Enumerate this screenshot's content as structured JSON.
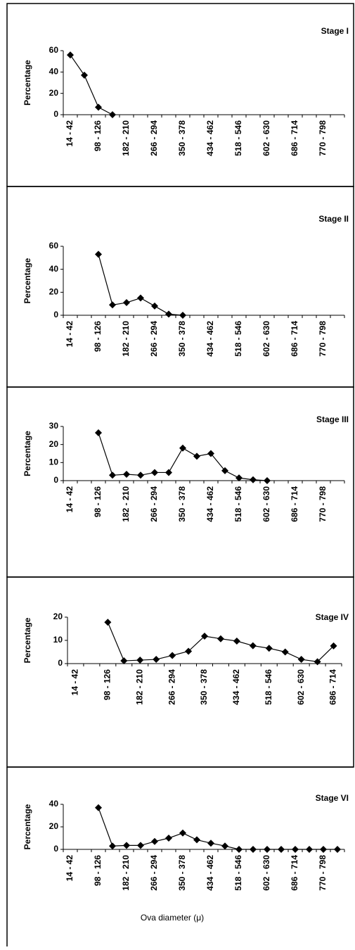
{
  "chart_data": [
    {
      "type": "line",
      "title": "Stage I",
      "ylabel": "Percentage",
      "categories": [
        "14 - 42",
        null,
        "98 - 126",
        null,
        "182 - 210",
        null,
        "266 - 294",
        null,
        "350 - 378",
        null,
        "434 - 462",
        null,
        "518 - 546",
        null,
        "602 - 630",
        null,
        "686 - 714",
        null,
        "770 - 798",
        null
      ],
      "values": [
        56,
        37,
        7,
        0,
        null,
        null,
        null,
        null,
        null,
        null,
        null,
        null,
        null,
        null,
        null,
        null,
        null,
        null,
        null,
        null
      ],
      "ylim": [
        0,
        60
      ],
      "yticks": [
        0,
        20,
        40,
        60
      ],
      "color": "#000000"
    },
    {
      "type": "line",
      "title": "Stage II",
      "ylabel": "Percentage",
      "categories": [
        "14 - 42",
        null,
        "98 - 126",
        null,
        "182 - 210",
        null,
        "266 - 294",
        null,
        "350 - 378",
        null,
        "434 - 462",
        null,
        "518 - 546",
        null,
        "602 - 630",
        null,
        "686 - 714",
        null,
        "770 - 798",
        null
      ],
      "values": [
        null,
        null,
        53,
        9,
        11,
        15,
        8,
        1,
        0,
        null,
        null,
        null,
        null,
        null,
        null,
        null,
        null,
        null,
        null,
        null
      ],
      "ylim": [
        0,
        60
      ],
      "yticks": [
        0,
        20,
        40,
        60
      ],
      "color": "#000000"
    },
    {
      "type": "line",
      "title": "Stage III",
      "ylabel": "Percentage",
      "categories": [
        "14 - 42",
        null,
        "98 - 126",
        null,
        "182 - 210",
        null,
        "266 - 294",
        null,
        "350 - 378",
        null,
        "434 - 462",
        null,
        "518 - 546",
        null,
        "602 - 630",
        null,
        "686 - 714",
        null,
        "770 - 798",
        null
      ],
      "values": [
        null,
        null,
        26.5,
        3,
        3.5,
        3,
        4.5,
        4.5,
        18,
        13.5,
        15,
        5.5,
        1.5,
        0.5,
        0,
        null,
        null,
        null,
        null,
        null
      ],
      "ylim": [
        0,
        30
      ],
      "yticks": [
        0,
        10,
        20,
        30
      ],
      "color": "#000000"
    },
    {
      "type": "line",
      "title": "Stage IV",
      "ylabel": "Percentage",
      "categories": [
        "14 - 42",
        null,
        "98 - 126",
        null,
        "182 - 210",
        null,
        "266 - 294",
        null,
        "350 - 378",
        null,
        "434 - 462",
        null,
        "518 - 546",
        null,
        "602 - 630",
        null,
        "686 - 714"
      ],
      "values": [
        null,
        null,
        17.8,
        1.2,
        1.5,
        1.8,
        3.5,
        5.3,
        11.8,
        10.7,
        9.7,
        7.7,
        6.6,
        5,
        1.8,
        0.8,
        7.6
      ],
      "ylim": [
        0,
        20
      ],
      "yticks": [
        0,
        10,
        20
      ],
      "color": "#000000"
    },
    {
      "type": "line",
      "title": "Stage VI",
      "ylabel": "Percentage",
      "xlabel": "Ova diameter (μ)",
      "categories": [
        "14 - 42",
        null,
        "98 - 126",
        null,
        "182 - 210",
        null,
        "266 - 294",
        null,
        "350 - 378",
        null,
        "434 - 462",
        null,
        "518 - 546",
        null,
        "602 - 630",
        null,
        "686 - 714",
        null,
        "770 - 798",
        null
      ],
      "values": [
        null,
        null,
        37,
        3,
        3.5,
        3.5,
        7,
        10,
        14.5,
        8.5,
        5.5,
        3,
        0,
        0,
        0,
        0,
        0,
        0,
        0,
        0
      ],
      "ylim": [
        0,
        40
      ],
      "yticks": [
        0,
        20,
        40
      ],
      "color": "#000000"
    }
  ]
}
